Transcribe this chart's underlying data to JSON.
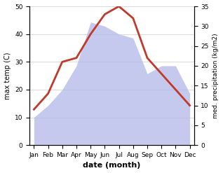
{
  "months": [
    "Jan",
    "Feb",
    "Mar",
    "Apr",
    "May",
    "Jun",
    "Jul",
    "Aug",
    "Sep",
    "Oct",
    "Nov",
    "Dec"
  ],
  "temperature": [
    9,
    13,
    21,
    22,
    28,
    33,
    35,
    32,
    22,
    18,
    14,
    10
  ],
  "precipitation": [
    7,
    10,
    14,
    20,
    31,
    30,
    28,
    27,
    18,
    20,
    20,
    13
  ],
  "temp_color": "#c0392b",
  "precip_color_fill": "#b0b8e8",
  "left_ylim": [
    0,
    50
  ],
  "left_yticks": [
    0,
    10,
    20,
    30,
    40,
    50
  ],
  "right_ylim": [
    0,
    35
  ],
  "right_yticks": [
    0,
    5,
    10,
    15,
    20,
    25,
    30,
    35
  ],
  "xlabel": "date (month)",
  "ylabel_left": "max temp (C)",
  "ylabel_right": "med. precipitation (kg/m2)",
  "bg_color": "#ffffff",
  "line_width": 2.0
}
